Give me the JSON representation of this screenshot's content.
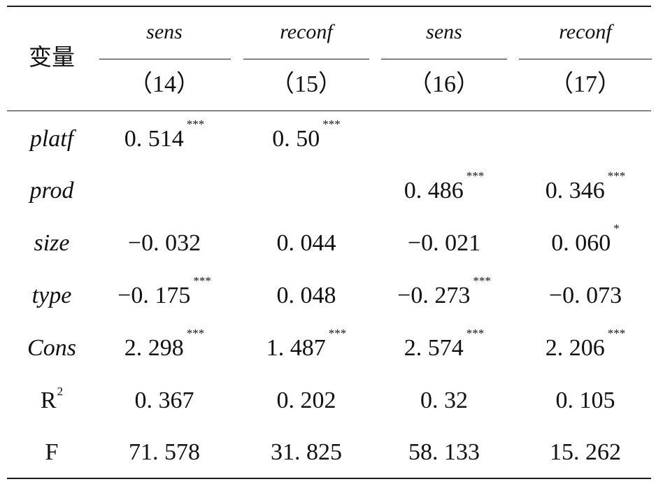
{
  "table": {
    "row_header": "变量",
    "columns": [
      {
        "dep_var": "sens",
        "model": "（14）"
      },
      {
        "dep_var": "reconf",
        "model": "（15）"
      },
      {
        "dep_var": "sens",
        "model": "（16）"
      },
      {
        "dep_var": "reconf",
        "model": "（17）"
      }
    ],
    "rows": [
      {
        "label": "platf",
        "cells": [
          {
            "v": "0. 514",
            "s": "***"
          },
          {
            "v": "0. 50",
            "s": "***"
          },
          {
            "v": "",
            "s": ""
          },
          {
            "v": "",
            "s": ""
          }
        ]
      },
      {
        "label": "prod",
        "cells": [
          {
            "v": "",
            "s": ""
          },
          {
            "v": "",
            "s": ""
          },
          {
            "v": "0. 486",
            "s": "***"
          },
          {
            "v": "0. 346",
            "s": "***"
          }
        ]
      },
      {
        "label": "size",
        "cells": [
          {
            "v": "−0. 032",
            "s": ""
          },
          {
            "v": "0. 044",
            "s": ""
          },
          {
            "v": "−0. 021",
            "s": ""
          },
          {
            "v": "0. 060",
            "s": "*"
          }
        ]
      },
      {
        "label": "type",
        "cells": [
          {
            "v": "−0. 175",
            "s": "***"
          },
          {
            "v": "0. 048",
            "s": ""
          },
          {
            "v": "−0. 273",
            "s": "***"
          },
          {
            "v": "−0. 073",
            "s": ""
          }
        ]
      },
      {
        "label": "Cons",
        "cells": [
          {
            "v": "2. 298",
            "s": "***"
          },
          {
            "v": "1. 487",
            "s": "***"
          },
          {
            "v": "2. 574",
            "s": "***"
          },
          {
            "v": "2. 206",
            "s": "***"
          }
        ]
      },
      {
        "label": "R",
        "label_sup": "2",
        "cells": [
          {
            "v": "0. 367",
            "s": ""
          },
          {
            "v": "0. 202",
            "s": ""
          },
          {
            "v": "0. 32",
            "s": ""
          },
          {
            "v": "0. 105",
            "s": ""
          }
        ]
      },
      {
        "label": "F",
        "cells": [
          {
            "v": "71. 578",
            "s": ""
          },
          {
            "v": "31. 825",
            "s": ""
          },
          {
            "v": "58. 133",
            "s": ""
          },
          {
            "v": "15. 262",
            "s": ""
          }
        ]
      }
    ]
  }
}
